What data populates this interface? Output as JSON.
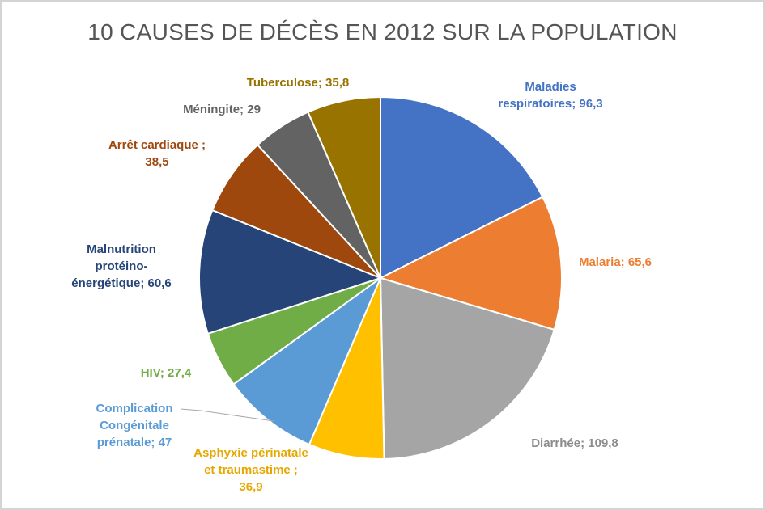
{
  "chart_data": {
    "type": "pie",
    "title": "10 CAUSES DE DÉCÈS EN 2012 SUR LA POPULATION",
    "slices": [
      {
        "name": "Maladies respiratoires",
        "value": 96.3,
        "label_lines": [
          "Maladies",
          "respiratoires; 96,3"
        ],
        "color": "#4472C4",
        "label_color": "#4472C4"
      },
      {
        "name": "Malaria",
        "value": 65.6,
        "label_lines": [
          "Malaria;  65,6"
        ],
        "color": "#ED7D31",
        "label_color": "#ED7D31"
      },
      {
        "name": "Diarrhée",
        "value": 109.8,
        "label_lines": [
          "Diarrhée; 109,8"
        ],
        "color": "#A5A5A5",
        "label_color": "#8C8C8C"
      },
      {
        "name": "Asphyxie périnatale et traumastime",
        "value": 36.9,
        "label_lines": [
          "Asphyxie périnatale",
          "et traumastime ;",
          "36,9"
        ],
        "color": "#FFC000",
        "label_color": "#E6A800"
      },
      {
        "name": "Complication Congénitale prénatale",
        "value": 47,
        "label_lines": [
          "Complication",
          "Congénitale",
          "prénatale; 47"
        ],
        "color": "#5B9BD5",
        "label_color": "#5B9BD5"
      },
      {
        "name": "HIV",
        "value": 27.4,
        "label_lines": [
          "HIV; 27,4"
        ],
        "color": "#70AD47",
        "label_color": "#70AD47"
      },
      {
        "name": "Malnutrition protéino-énergétique",
        "value": 60.6,
        "label_lines": [
          "Malnutrition",
          "protéino-",
          "énergétique; 60,6"
        ],
        "color": "#264478",
        "label_color": "#264478"
      },
      {
        "name": "Arrêt cardiaque",
        "value": 38.5,
        "label_lines": [
          "Arrêt  cardiaque  ;",
          "38,5"
        ],
        "color": "#9E480E",
        "label_color": "#9E480E"
      },
      {
        "name": "Méningite",
        "value": 29,
        "label_lines": [
          "Méningite; 29"
        ],
        "color": "#636363",
        "label_color": "#636363"
      },
      {
        "name": "Tuberculose",
        "value": 35.8,
        "label_lines": [
          "Tuberculose; 35,8"
        ],
        "color": "#997300",
        "label_color": "#997300"
      }
    ]
  }
}
